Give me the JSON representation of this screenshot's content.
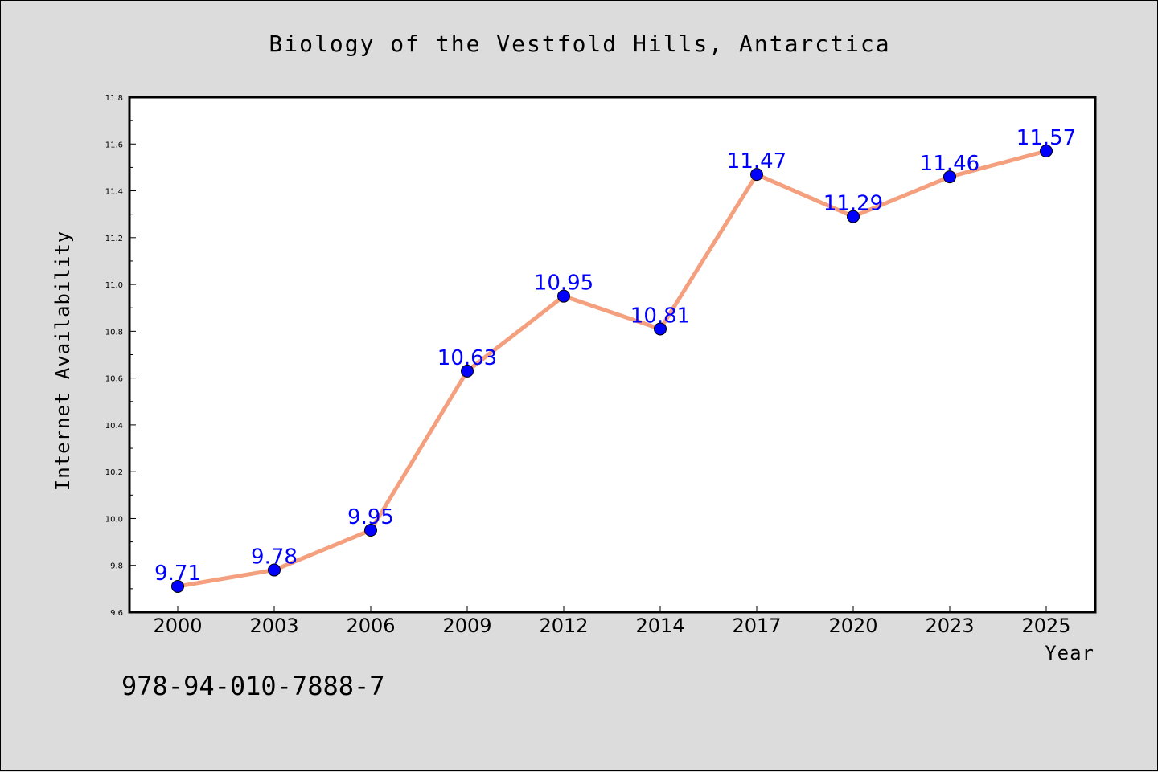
{
  "chart_data": {
    "type": "line",
    "title": "Biology of the Vestfold Hills, Antarctica",
    "xlabel": "Year",
    "ylabel": "Internet Availability",
    "categories": [
      "2000",
      "2003",
      "2006",
      "2009",
      "2012",
      "2014",
      "2017",
      "2020",
      "2023",
      "2025"
    ],
    "series": [
      {
        "values": [
          9.71,
          9.78,
          9.95,
          10.63,
          10.95,
          10.81,
          11.47,
          11.29,
          11.46,
          11.57
        ],
        "data_labels": [
          "9.71",
          "9.78",
          "9.95",
          "10.63",
          "10.95",
          "10.81",
          "11.47",
          "11.29",
          "11.46",
          "11.57"
        ],
        "line_color": "#f4a07e",
        "marker_color": "#0000ff"
      }
    ],
    "ylim": [
      9.6,
      11.8
    ],
    "yticks": [
      "9.6",
      "9.8",
      "10.0",
      "10.2",
      "10.4",
      "10.6",
      "10.8",
      "11.0",
      "11.2",
      "11.4",
      "11.6",
      "11.8"
    ],
    "grid": false,
    "legend": "none"
  },
  "footer": {
    "isbn": "978-94-010-7888-7"
  },
  "colors": {
    "background": "#dcdcdc",
    "plot_background": "#ffffff",
    "line": "#f4a07e",
    "marker": "#0000ff",
    "data_label": "#0000ff"
  }
}
